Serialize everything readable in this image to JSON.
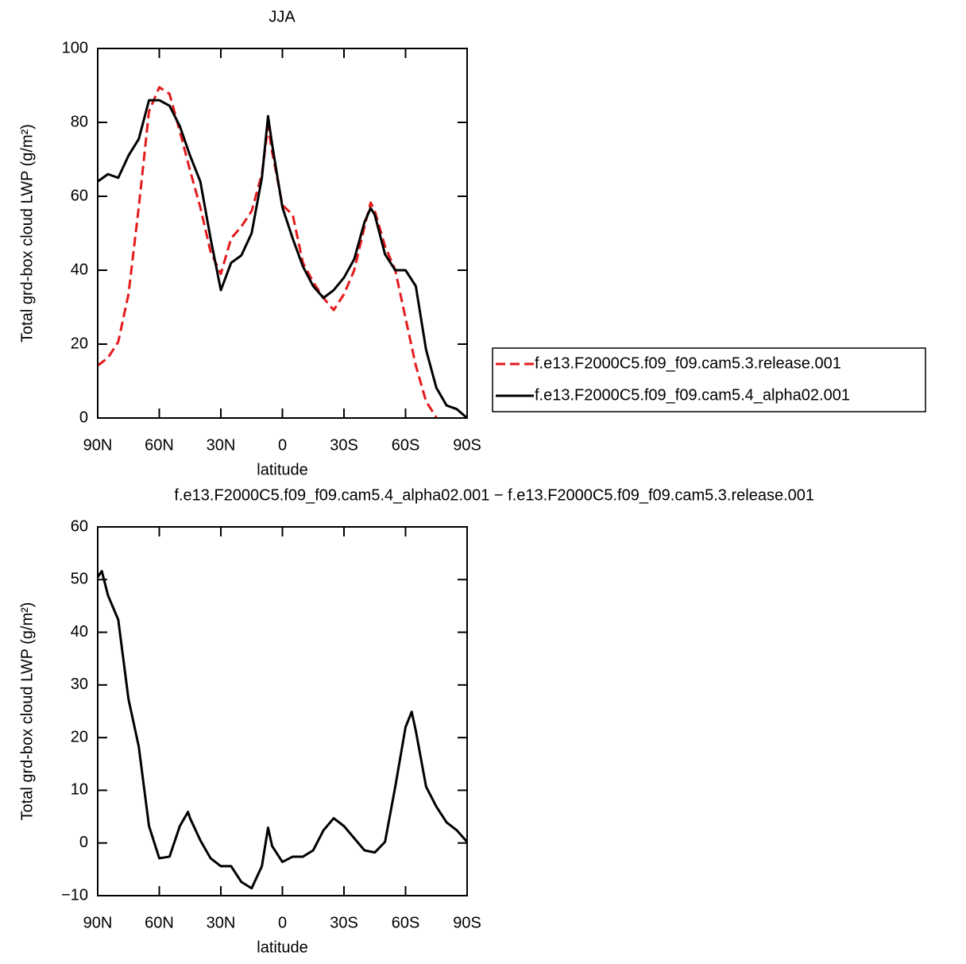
{
  "chart_data": [
    {
      "type": "line",
      "title": "JJA",
      "xlabel": "latitude",
      "ylabel": "Total grd-box cloud LWP (g/m²)",
      "x": [
        90,
        85,
        80,
        75,
        70,
        65,
        60,
        55,
        50,
        45,
        40,
        35,
        30,
        25,
        20,
        15,
        10,
        7,
        5,
        0,
        -5,
        -10,
        -15,
        -20,
        -25,
        -30,
        -35,
        -40,
        -43,
        -45,
        -50,
        -55,
        -60,
        -65,
        -70,
        -75,
        -80,
        -85,
        -90
      ],
      "series": [
        {
          "name": "f.e13.F2000C5.f09_f09.cam5.3.release.001",
          "color": "#e41a1c",
          "dash": true,
          "values": [
            14.2,
            16.3,
            20.6,
            33.5,
            57,
            83,
            89.5,
            87.7,
            77.6,
            67,
            57,
            45,
            39,
            48.6,
            51.8,
            56,
            66,
            79,
            72,
            57.6,
            55,
            42,
            36.8,
            32.5,
            29.2,
            33.5,
            40,
            51.8,
            58.3,
            56,
            46.5,
            40,
            27,
            14.2,
            4.5,
            0.2,
            null,
            null,
            null
          ]
        },
        {
          "name": "f.e13.F2000C5.f09_f09.cam5.4_alpha02.001",
          "color": "#000000",
          "dash": false,
          "values": [
            64,
            66,
            65,
            71,
            75.5,
            86,
            86,
            84.5,
            79,
            71,
            64,
            48.6,
            34.6,
            42,
            44,
            50,
            65,
            81.7,
            74,
            57,
            48.6,
            41,
            35.7,
            32.5,
            34.6,
            38,
            43,
            53,
            56.8,
            55,
            44.3,
            40,
            40,
            35.7,
            18.5,
            8.2,
            3.4,
            2.4,
            0
          ]
        }
      ],
      "xlim": [
        90,
        -90
      ],
      "xticks": [
        {
          "value": 90,
          "label": "90N"
        },
        {
          "value": 60,
          "label": "60N"
        },
        {
          "value": 30,
          "label": "30N"
        },
        0,
        {
          "value": -30,
          "label": "30S"
        },
        {
          "value": -60,
          "label": "60S"
        },
        {
          "value": -90,
          "label": "90S"
        }
      ],
      "ylim": [
        0,
        100
      ],
      "yticks": [
        0,
        20,
        40,
        60,
        80,
        100
      ],
      "legend": "right"
    },
    {
      "type": "line",
      "title": "f.e13.F2000C5.f09_f09.cam5.4_alpha02.001 − f.e13.F2000C5.f09_f09.cam5.3.release.001",
      "xlabel": "latitude",
      "ylabel": "Total grd-box cloud LWP (g/m²)",
      "x": [
        90,
        88,
        85,
        80,
        75,
        70,
        65,
        60,
        55,
        50,
        46,
        45,
        40,
        35,
        30,
        25,
        20,
        15,
        10,
        7,
        5,
        0,
        -5,
        -10,
        -15,
        -20,
        -25,
        -30,
        -35,
        -40,
        -45,
        -50,
        -55,
        -60,
        -63,
        -65,
        -70,
        -75,
        -80,
        -85,
        -90
      ],
      "series": [
        {
          "color": "#000000",
          "dash": false,
          "values": [
            50.5,
            51.6,
            47,
            42.4,
            27.3,
            18.3,
            3.2,
            -2.9,
            -2.6,
            3.2,
            5.9,
            4.7,
            0.5,
            -2.9,
            -4.4,
            -4.4,
            -7.4,
            -8.6,
            -4.4,
            2.9,
            -0.6,
            -3.6,
            -2.6,
            -2.6,
            -1.4,
            2.4,
            4.7,
            3.2,
            0.9,
            -1.4,
            -1.8,
            0.2,
            10.7,
            22,
            24.9,
            21.3,
            10.7,
            6.9,
            3.9,
            2.4,
            0.2
          ]
        }
      ],
      "xlim": [
        90,
        -90
      ],
      "xticks": [
        {
          "value": 90,
          "label": "90N"
        },
        {
          "value": 60,
          "label": "60N"
        },
        {
          "value": 30,
          "label": "30N"
        },
        0,
        {
          "value": -30,
          "label": "30S"
        },
        {
          "value": -60,
          "label": "60S"
        },
        {
          "value": -90,
          "label": "90S"
        }
      ],
      "ylim": [
        -10,
        60
      ],
      "yticks": [
        {
          "value": -10,
          "label": "−10"
        },
        0,
        10,
        20,
        30,
        40,
        50,
        60
      ]
    }
  ]
}
